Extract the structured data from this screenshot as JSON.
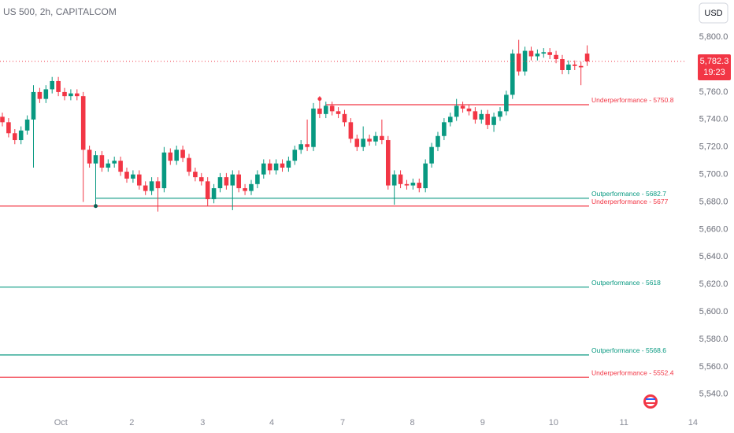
{
  "chart_data": {
    "type": "candlestick",
    "title": "US 500, 2h, CAPITALCOM",
    "currency": "USD",
    "countdown": "19:23",
    "last_price_label": "5,782.3",
    "up_color": "#089981",
    "down_color": "#f23645",
    "open": [
      5742,
      5738,
      5730,
      5725,
      5732,
      5740,
      5760,
      5755,
      5762,
      5768,
      5760,
      5757,
      5759,
      5757,
      5718,
      5708,
      5714,
      5705,
      5708,
      5710,
      5702,
      5697,
      5700,
      5692,
      5688,
      5695,
      5690,
      5716,
      5710,
      5718,
      5712,
      5702,
      5698,
      5695,
      5682,
      5690,
      5698,
      5692,
      5700,
      5690,
      5688,
      5693,
      5700,
      5708,
      5703,
      5708,
      5705,
      5710,
      5718,
      5722,
      5720,
      5748,
      5744,
      5750,
      5746,
      5744,
      5738,
      5726,
      5720,
      5726,
      5724,
      5728,
      5725,
      5692,
      5700,
      5693,
      5692,
      5694,
      5690,
      5708,
      5720,
      5728,
      5738,
      5742,
      5750,
      5748,
      5746,
      5740,
      5744,
      5736,
      5742,
      5746,
      5758,
      5788,
      5775,
      5790,
      5786,
      5788,
      5789,
      5787,
      5784,
      5776,
      5780,
      5779,
      5788
    ],
    "high": [
      5745,
      5741,
      5733,
      5735,
      5743,
      5765,
      5763,
      5765,
      5771,
      5771,
      5763,
      5762,
      5762,
      5760,
      5721,
      5717,
      5717,
      5711,
      5713,
      5713,
      5705,
      5703,
      5703,
      5695,
      5698,
      5698,
      5720,
      5719,
      5721,
      5721,
      5715,
      5705,
      5701,
      5698,
      5693,
      5701,
      5701,
      5703,
      5703,
      5693,
      5696,
      5703,
      5711,
      5711,
      5711,
      5711,
      5713,
      5721,
      5725,
      5740,
      5752,
      5757,
      5753,
      5753,
      5749,
      5747,
      5741,
      5729,
      5735,
      5729,
      5731,
      5740,
      5728,
      5703,
      5703,
      5696,
      5697,
      5697,
      5711,
      5723,
      5731,
      5741,
      5745,
      5755,
      5753,
      5751,
      5749,
      5747,
      5747,
      5745,
      5749,
      5761,
      5791,
      5798,
      5793,
      5793,
      5791,
      5792,
      5792,
      5790,
      5787,
      5783,
      5783,
      5782,
      5794
    ],
    "low": [
      5735,
      5727,
      5722,
      5722,
      5729,
      5705,
      5752,
      5752,
      5759,
      5757,
      5754,
      5754,
      5754,
      5680,
      5705,
      5677,
      5702,
      5702,
      5705,
      5699,
      5694,
      5694,
      5689,
      5685,
      5685,
      5673,
      5687,
      5707,
      5707,
      5709,
      5699,
      5695,
      5692,
      5677,
      5679,
      5687,
      5689,
      5674,
      5687,
      5685,
      5685,
      5690,
      5697,
      5700,
      5700,
      5702,
      5702,
      5707,
      5715,
      5717,
      5717,
      5741,
      5741,
      5743,
      5741,
      5735,
      5723,
      5717,
      5717,
      5721,
      5721,
      5722,
      5689,
      5678,
      5690,
      5689,
      5689,
      5687,
      5687,
      5705,
      5717,
      5725,
      5735,
      5739,
      5745,
      5743,
      5737,
      5737,
      5733,
      5731,
      5739,
      5743,
      5755,
      5772,
      5772,
      5783,
      5783,
      5785,
      5784,
      5781,
      5773,
      5773,
      5776,
      5765,
      5779
    ],
    "close": [
      5738,
      5730,
      5725,
      5732,
      5740,
      5760,
      5755,
      5762,
      5768,
      5760,
      5757,
      5759,
      5757,
      5718,
      5708,
      5714,
      5705,
      5708,
      5710,
      5702,
      5697,
      5700,
      5692,
      5688,
      5695,
      5690,
      5716,
      5710,
      5718,
      5712,
      5702,
      5698,
      5695,
      5682,
      5690,
      5698,
      5692,
      5700,
      5690,
      5688,
      5693,
      5700,
      5708,
      5703,
      5708,
      5705,
      5710,
      5718,
      5722,
      5720,
      5748,
      5744,
      5750,
      5746,
      5744,
      5738,
      5726,
      5720,
      5726,
      5724,
      5728,
      5725,
      5692,
      5700,
      5693,
      5692,
      5694,
      5690,
      5708,
      5720,
      5728,
      5738,
      5742,
      5750,
      5748,
      5746,
      5740,
      5744,
      5736,
      5742,
      5746,
      5758,
      5788,
      5775,
      5790,
      5786,
      5788,
      5789,
      5787,
      5784,
      5776,
      5780,
      5779,
      5778,
      5782.3
    ],
    "xlim": [
      -0.38,
      117.6
    ],
    "xticks": [
      {
        "value": 9.4,
        "label": "Oct"
      },
      {
        "value": 20.8,
        "label": "2"
      },
      {
        "value": 32.2,
        "label": "3"
      },
      {
        "value": 43.3,
        "label": "4"
      },
      {
        "value": 54.7,
        "label": "7"
      },
      {
        "value": 65.9,
        "label": "8"
      },
      {
        "value": 77.2,
        "label": "9"
      },
      {
        "value": 88.6,
        "label": "10"
      },
      {
        "value": 99.9,
        "label": "11"
      },
      {
        "value": 111,
        "label": "14"
      }
    ],
    "ylim": [
      5529,
      5827
    ],
    "yticks": [
      {
        "value": 5540,
        "label": "5,540.0"
      },
      {
        "value": 5560,
        "label": "5,560.0"
      },
      {
        "value": 5580,
        "label": "5,580.0"
      },
      {
        "value": 5600,
        "label": "5,600.0"
      },
      {
        "value": 5620,
        "label": "5,620.0"
      },
      {
        "value": 5640,
        "label": "5,640.0"
      },
      {
        "value": 5660,
        "label": "5,660.0"
      },
      {
        "value": 5680,
        "label": "5,680.0"
      },
      {
        "value": 5700,
        "label": "5,700.0"
      },
      {
        "value": 5720,
        "label": "5,720.0"
      },
      {
        "value": 5740,
        "label": "5,740.0"
      },
      {
        "value": 5760,
        "label": "5,760.0"
      },
      {
        "value": 5780,
        "label": "5,780.0"
      },
      {
        "value": 5800,
        "label": "5,800.0"
      }
    ],
    "levels": [
      {
        "label": "Underperformance - 5750.8",
        "value": 5750.8,
        "x": 52,
        "color": "#f23645"
      },
      {
        "label": "Outperformance - 5682.7",
        "value": 5682.7,
        "x": 15,
        "color": "#089981"
      },
      {
        "label": "Underperformance - 5677",
        "value": 5677,
        "x": -0.38,
        "color": "#f23645"
      },
      {
        "label": "Outperformance - 5618",
        "value": 5618,
        "x": -0.38,
        "color": "#089981"
      },
      {
        "label": "Outperformance - 5568.6",
        "value": 5568.6,
        "x": -0.38,
        "color": "#089981"
      },
      {
        "label": "Underperformance - 5552.4",
        "value": 5552.4,
        "x": -0.38,
        "color": "#f23645"
      }
    ],
    "markers": [
      {
        "x": 15,
        "value": 5677,
        "color": "#0b5d52"
      },
      {
        "x": 51,
        "value": 5755,
        "color": "#f23645"
      }
    ]
  }
}
